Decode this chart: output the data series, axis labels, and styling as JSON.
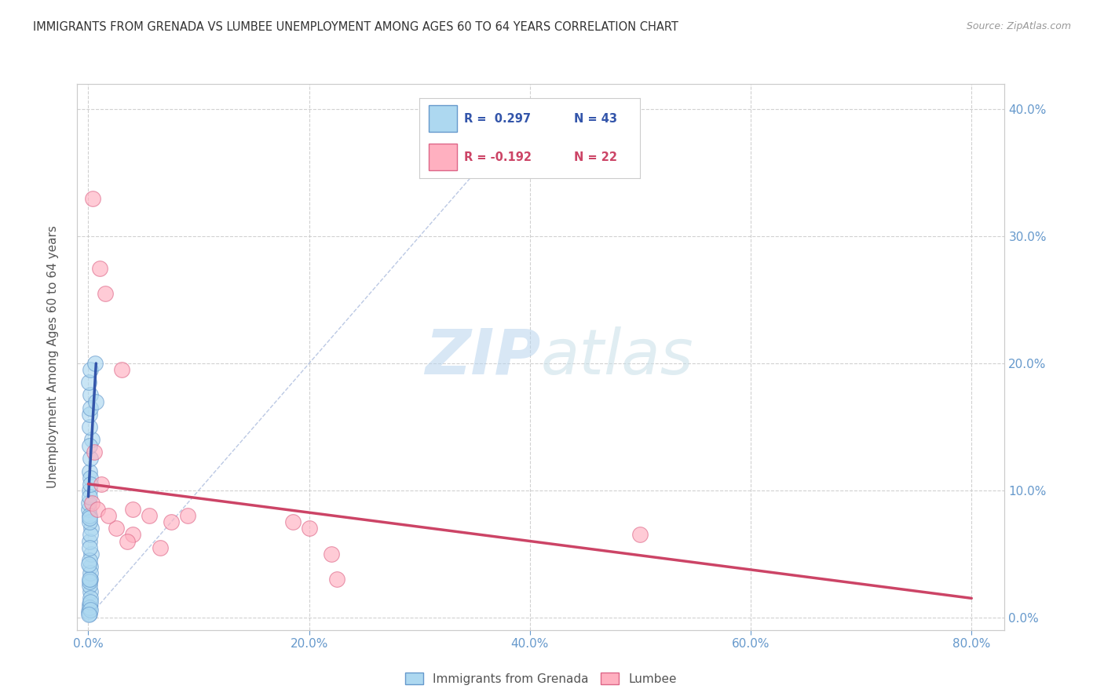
{
  "title": "IMMIGRANTS FROM GRENADA VS LUMBEE UNEMPLOYMENT AMONG AGES 60 TO 64 YEARS CORRELATION CHART",
  "source": "Source: ZipAtlas.com",
  "xlabel_ticks": [
    "0.0%",
    "",
    "",
    "",
    "20.0%",
    "",
    "",
    "",
    "40.0%",
    "",
    "",
    "",
    "60.0%",
    "",
    "",
    "",
    "80.0%"
  ],
  "xlabel_vals": [
    0,
    5,
    10,
    15,
    20,
    25,
    30,
    35,
    40,
    45,
    50,
    55,
    60,
    65,
    70,
    75,
    80
  ],
  "xlabel_major_ticks": [
    0,
    20,
    40,
    60,
    80
  ],
  "xlabel_major_labels": [
    "0.0%",
    "20.0%",
    "40.0%",
    "60.0%",
    "80.0%"
  ],
  "ylabel_ticks": [
    "0.0%",
    "10.0%",
    "20.0%",
    "30.0%",
    "40.0%"
  ],
  "ylabel_vals": [
    0,
    10,
    20,
    30,
    40
  ],
  "ylabel_label": "Unemployment Among Ages 60 to 64 years",
  "xlim": [
    -1,
    83
  ],
  "ylim": [
    -1,
    42
  ],
  "legend_blue_r": "R =  0.297",
  "legend_blue_n": "N = 43",
  "legend_pink_r": "R = -0.192",
  "legend_pink_n": "N = 22",
  "blue_color": "#add8f0",
  "blue_edge_color": "#6699cc",
  "blue_line_color": "#3355aa",
  "pink_color": "#ffb0c0",
  "pink_edge_color": "#dd6688",
  "pink_line_color": "#cc4466",
  "dashed_line_color": "#aabbdd",
  "watermark_zip": "ZIP",
  "watermark_atlas": "atlas",
  "blue_scatter_x": [
    0.05,
    0.1,
    0.15,
    0.12,
    0.08,
    0.2,
    0.18,
    0.25,
    0.1,
    0.15,
    0.05,
    0.08,
    0.12,
    0.18,
    0.22,
    0.3,
    0.1,
    0.05,
    0.15,
    0.08,
    0.2,
    0.12,
    0.1,
    0.18,
    0.08,
    0.05,
    0.15,
    0.1,
    0.2,
    0.12,
    0.08,
    0.1,
    0.15,
    0.2,
    0.05,
    0.12,
    0.18,
    0.08,
    0.1,
    0.6,
    0.7,
    0.15,
    0.05
  ],
  "blue_scatter_y": [
    0.5,
    1.0,
    2.0,
    2.5,
    0.3,
    3.0,
    4.0,
    5.0,
    6.0,
    1.5,
    8.5,
    10.0,
    11.5,
    12.5,
    7.0,
    14.0,
    15.0,
    9.0,
    3.5,
    4.5,
    6.5,
    7.5,
    16.0,
    17.5,
    5.5,
    18.5,
    19.5,
    0.8,
    1.2,
    2.8,
    8.0,
    3.0,
    0.6,
    11.0,
    4.2,
    9.5,
    16.5,
    13.5,
    7.8,
    20.0,
    17.0,
    10.5,
    0.2
  ],
  "pink_scatter_x": [
    0.3,
    1.0,
    1.5,
    3.0,
    4.0,
    5.5,
    0.5,
    0.8,
    7.5,
    9.0,
    2.5,
    4.0,
    18.5,
    20.0,
    22.0,
    22.5,
    50.0,
    1.2,
    1.8,
    3.5,
    6.5,
    0.4
  ],
  "pink_scatter_y": [
    9.0,
    27.5,
    25.5,
    19.5,
    8.5,
    8.0,
    13.0,
    8.5,
    7.5,
    8.0,
    7.0,
    6.5,
    7.5,
    7.0,
    5.0,
    3.0,
    6.5,
    10.5,
    8.0,
    6.0,
    5.5,
    33.0
  ],
  "blue_regline_x": [
    0,
    0.7
  ],
  "blue_regline_y": [
    9.5,
    20.0
  ],
  "pink_regline_x": [
    0,
    80
  ],
  "pink_regline_y": [
    10.5,
    1.5
  ],
  "dashed_line_x": [
    0,
    40
  ],
  "dashed_line_y": [
    0,
    40
  ],
  "grid_color": "#cccccc",
  "background_color": "#ffffff",
  "title_color": "#333333",
  "source_color": "#999999",
  "axis_label_color": "#555555",
  "right_tick_color": "#6699cc",
  "bottom_tick_color": "#6699cc"
}
